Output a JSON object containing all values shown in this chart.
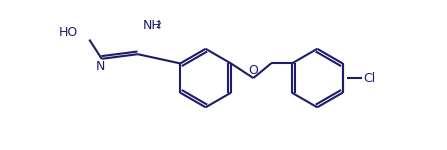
{
  "bg_color": "#ffffff",
  "bond_color": "#1c1c6e",
  "text_color": "#1c1c6e",
  "line_width": 1.5,
  "fig_width": 4.47,
  "fig_height": 1.5,
  "dpi": 100,
  "font_size": 9.0,
  "font_size_sub": 6.5,
  "xlim": [
    0,
    447
  ],
  "ylim": [
    0,
    150
  ]
}
